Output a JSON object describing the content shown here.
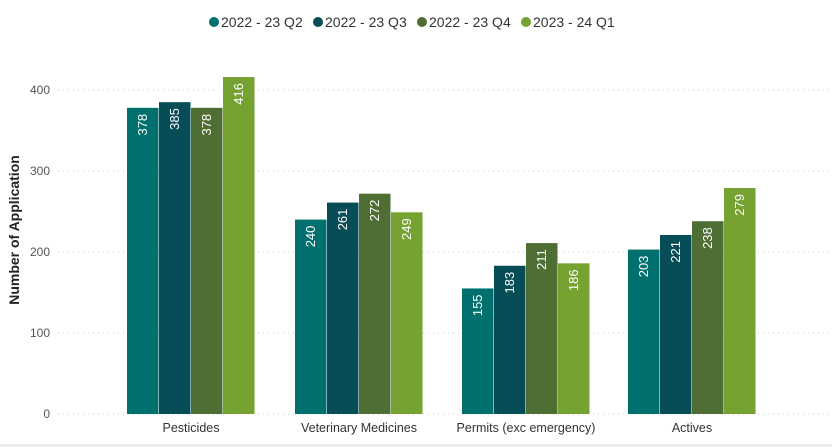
{
  "chart_data": {
    "type": "bar",
    "title": "",
    "xlabel": "",
    "ylabel": "Number of Application",
    "ylim": [
      0,
      420
    ],
    "yticks": [
      0,
      100,
      200,
      300,
      400
    ],
    "grid": true,
    "legend_position": "top-center",
    "categories": [
      "Pesticides",
      "Veterinary Medicines",
      "Permits (exc emergency)",
      "Actives"
    ],
    "series": [
      {
        "name": "2022 - 23 Q2",
        "color": "#00706f",
        "values": [
          378,
          240,
          155,
          203
        ]
      },
      {
        "name": "2022 - 23 Q3",
        "color": "#064d57",
        "values": [
          385,
          261,
          183,
          221
        ]
      },
      {
        "name": "2022 - 23 Q4",
        "color": "#4e6e33",
        "values": [
          378,
          272,
          211,
          238
        ]
      },
      {
        "name": "2023 - 24 Q1",
        "color": "#76a232",
        "values": [
          416,
          249,
          186,
          279
        ]
      }
    ]
  }
}
